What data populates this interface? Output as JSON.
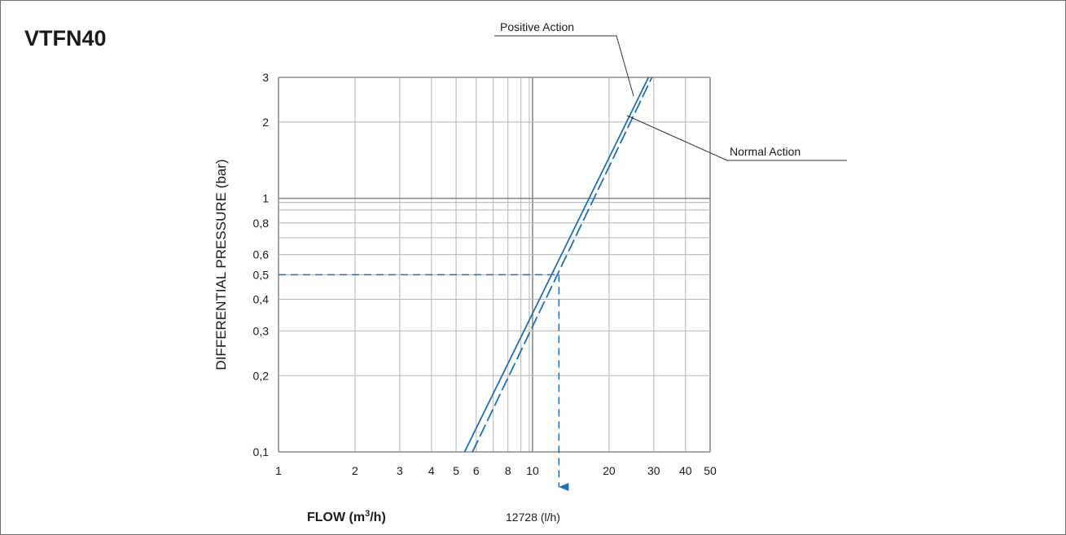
{
  "title": "VTFN40",
  "chart_data": {
    "type": "line",
    "title": "VTFN40",
    "xlabel_prefix": "FLOW (m",
    "xlabel_sup": "3",
    "xlabel_suffix": "/h)",
    "ylabel": "DIFFERENTIAL PRESSURE (bar)",
    "x_scale": "log",
    "y_scale": "log",
    "xlim": [
      1,
      50
    ],
    "ylim": [
      0.1,
      3
    ],
    "x_ticks": [
      1,
      2,
      3,
      4,
      5,
      6,
      8,
      10,
      20,
      30,
      40,
      50
    ],
    "x_tick_labels": [
      "1",
      "2",
      "3",
      "4",
      "5",
      "6",
      "8",
      "10",
      "20",
      "30",
      "40",
      "50"
    ],
    "y_ticks": [
      0.1,
      0.2,
      0.3,
      0.4,
      0.5,
      0.6,
      0.8,
      1,
      2,
      3
    ],
    "y_tick_labels": [
      "0,1",
      "0,2",
      "0,3",
      "0,4",
      "0,5",
      "0,6",
      "0,8",
      "1",
      "2",
      "3"
    ],
    "grid": true,
    "series": [
      {
        "name": "Positive Action",
        "style": "solid",
        "color": "#1f6fb5",
        "x": [
          5.4,
          28.6
        ],
        "y": [
          0.1,
          3
        ]
      },
      {
        "name": "Normal Action",
        "style": "dashed",
        "color": "#1f6fb5",
        "x": [
          5.8,
          29.5
        ],
        "y": [
          0.1,
          3
        ]
      }
    ],
    "reference": {
      "x": 12.7,
      "y": 0.5,
      "color": "#1f6fb5"
    },
    "annotations": {
      "flow_result": "12728 (l/h)"
    }
  }
}
